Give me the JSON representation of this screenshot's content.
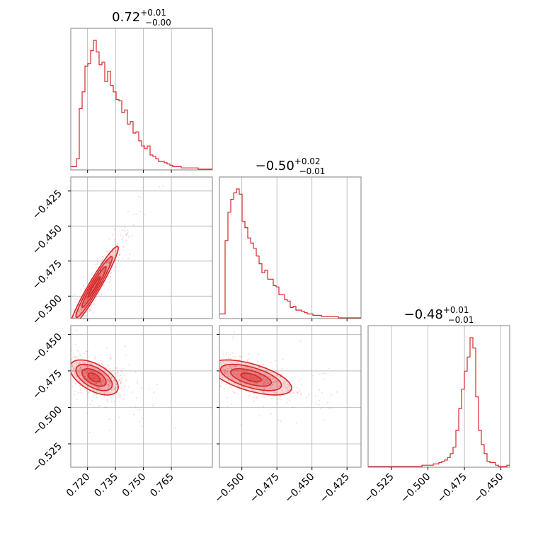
{
  "chart_data": {
    "type": "corner",
    "color": "#d62728",
    "parameters": [
      {
        "range": [
          0.711,
          0.787
        ],
        "ticks": [
          0.72,
          0.735,
          0.75,
          0.765
        ],
        "tick_labels": [
          "0.720",
          "0.735",
          "0.750",
          "0.765"
        ],
        "title": {
          "value": "0.72",
          "plus": "+0.01",
          "minus": "−0.00"
        }
      },
      {
        "range": [
          -0.516,
          -0.415
        ],
        "ticks": [
          -0.5,
          -0.475,
          -0.45,
          -0.425
        ],
        "tick_labels": [
          "−0.500",
          "−0.475",
          "−0.450",
          "−0.425"
        ],
        "title": {
          "value": "−0.50",
          "plus": "+0.02",
          "minus": "−0.01"
        }
      },
      {
        "range": [
          -0.541,
          -0.444
        ],
        "ticks": [
          -0.525,
          -0.5,
          -0.475,
          -0.45
        ],
        "tick_labels": [
          "−0.525",
          "−0.500",
          "−0.475",
          "−0.450"
        ],
        "title": {
          "value": "−0.48",
          "plus": "+0.01",
          "minus": "−0.01"
        }
      }
    ],
    "histograms": [
      {
        "param": 0,
        "bin_edges_range": [
          0.711,
          0.787
        ],
        "counts": [
          2,
          2,
          8,
          47,
          60,
          80,
          82,
          92,
          100,
          91,
          81,
          83,
          68,
          76,
          65,
          60,
          54,
          53,
          44,
          46,
          35,
          37,
          28,
          29,
          22,
          18,
          16,
          18,
          11,
          10,
          8,
          6,
          6,
          5,
          4,
          3,
          2,
          2,
          2,
          1,
          1,
          1,
          1,
          1,
          1,
          0,
          0,
          0,
          0,
          0
        ]
      },
      {
        "param": 1,
        "bin_edges_range": [
          -0.516,
          -0.415
        ],
        "counts": [
          3,
          3,
          60,
          82,
          92,
          97,
          100,
          96,
          75,
          70,
          62,
          58,
          54,
          48,
          42,
          35,
          37,
          30,
          30,
          25,
          24,
          18,
          18,
          14,
          13,
          8,
          9,
          6,
          6,
          5,
          4,
          3,
          3,
          2,
          2,
          2,
          1,
          1,
          1,
          1,
          1,
          1,
          0,
          0,
          0,
          0,
          0,
          0,
          0,
          0
        ]
      },
      {
        "param": 2,
        "bin_edges_range": [
          -0.541,
          -0.444
        ],
        "counts": [
          0,
          0,
          0,
          0,
          0,
          0,
          0,
          0,
          0,
          0,
          0,
          0,
          0,
          0,
          0,
          0,
          0,
          0,
          0,
          1,
          1,
          1,
          1,
          2,
          2,
          3,
          4,
          5,
          7,
          10,
          15,
          28,
          45,
          60,
          74,
          85,
          100,
          92,
          54,
          28,
          17,
          10,
          4,
          3,
          3,
          1,
          0,
          0,
          0,
          1
        ]
      }
    ],
    "joint": [
      {
        "x_param": 0,
        "y_param": 1,
        "mean": [
          0.7235,
          -0.4935
        ],
        "sigma": [
          0.0065,
          0.0145
        ],
        "rho": 0.96
      },
      {
        "x_param": 0,
        "y_param": 2,
        "mean": [
          0.7235,
          -0.4795
        ],
        "sigma": [
          0.0065,
          0.006
        ],
        "rho": -0.55
      },
      {
        "x_param": 1,
        "y_param": 2,
        "mean": [
          -0.4935,
          -0.4795
        ],
        "sigma": [
          0.0145,
          0.006
        ],
        "rho": -0.6
      }
    ],
    "grid": true
  }
}
